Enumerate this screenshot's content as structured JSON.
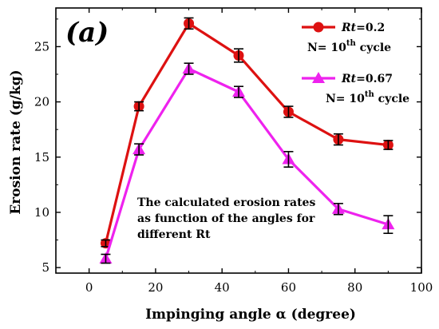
{
  "chart_data": {
    "type": "line",
    "panel_label": "(a)",
    "xlabel": "Impinging angle α (degree)",
    "ylabel": "Erosion rate (g/kg)",
    "xlim": [
      -10,
      100
    ],
    "ylim": [
      4.5,
      28.5
    ],
    "xticks": [
      0,
      20,
      40,
      60,
      80,
      100
    ],
    "yticks": [
      5,
      10,
      15,
      20,
      25
    ],
    "x": [
      5,
      15,
      30,
      45,
      60,
      75,
      90
    ],
    "series": [
      {
        "name": "Rt=0.2",
        "name_italic": "Rt",
        "name_rest": "=0.2",
        "cycle_label": "N= 10th cycle",
        "cycle_prefix": "N= 10",
        "cycle_sup": "th",
        "cycle_suffix": " cycle",
        "color": "#dd1111",
        "marker": "circle",
        "values": [
          7.2,
          19.6,
          27.1,
          24.2,
          19.1,
          16.6,
          16.1
        ],
        "errors": [
          0.3,
          0.4,
          0.5,
          0.6,
          0.5,
          0.5,
          0.4
        ]
      },
      {
        "name": "Rt=0.67",
        "name_italic": "Rt",
        "name_rest": "=0.67",
        "cycle_label": "N= 10th cycle",
        "cycle_prefix": "N= 10",
        "cycle_sup": "th",
        "cycle_suffix": " cycle",
        "color": "#ee22ee",
        "marker": "triangle",
        "values": [
          5.8,
          15.7,
          23.0,
          20.9,
          14.8,
          10.3,
          8.9
        ],
        "errors": [
          0.4,
          0.5,
          0.5,
          0.5,
          0.7,
          0.5,
          0.8
        ]
      }
    ],
    "annotation": [
      "The calculated erosion rates",
      "as function of the angles for",
      "different Rt"
    ],
    "legend_position": "top-right",
    "grid": false
  }
}
